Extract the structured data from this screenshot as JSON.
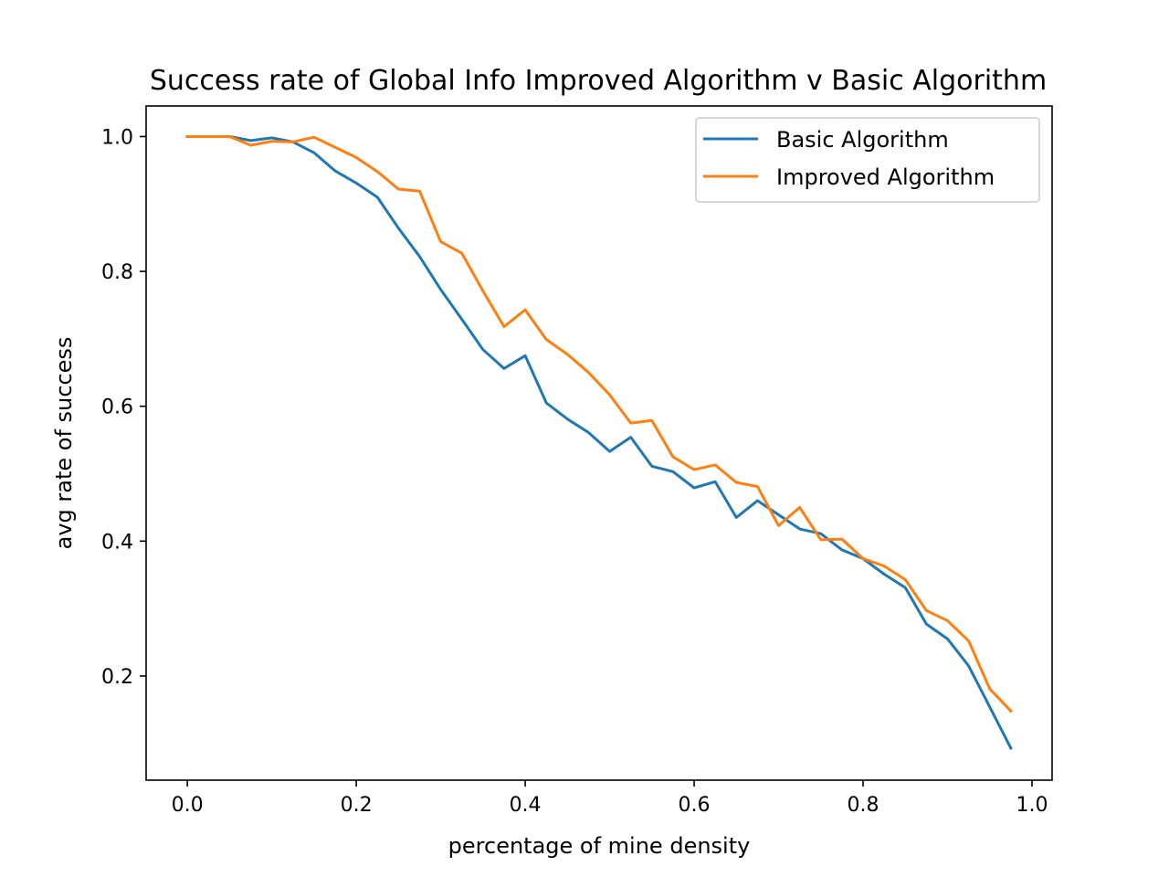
{
  "chart_data": {
    "type": "line",
    "title": "Success rate of Global Info Improved Algorithm v Basic Algorithm",
    "xlabel": "percentage of mine density",
    "ylabel": "avg rate of success",
    "xlim": [
      -0.0488,
      1.0238
    ],
    "ylim": [
      0.0455,
      1.0453
    ],
    "xticks": [
      0.0,
      0.2,
      0.4,
      0.6,
      0.8,
      1.0
    ],
    "xtick_labels": [
      "0.0",
      "0.2",
      "0.4",
      "0.6",
      "0.8",
      "1.0"
    ],
    "yticks": [
      0.2,
      0.4,
      0.6,
      0.8,
      1.0
    ],
    "ytick_labels": [
      "0.2",
      "0.4",
      "0.6",
      "0.8",
      "1.0"
    ],
    "grid": false,
    "legend_position": "top-right",
    "x": [
      0.0,
      0.025,
      0.05,
      0.075,
      0.1,
      0.125,
      0.15,
      0.175,
      0.2,
      0.225,
      0.25,
      0.275,
      0.3,
      0.325,
      0.35,
      0.375,
      0.4,
      0.425,
      0.45,
      0.475,
      0.5,
      0.525,
      0.55,
      0.575,
      0.6,
      0.625,
      0.65,
      0.675,
      0.7,
      0.725,
      0.75,
      0.775,
      0.8,
      0.825,
      0.85,
      0.875,
      0.9,
      0.925,
      0.95,
      0.975
    ],
    "series": [
      {
        "name": "Basic Algorithm",
        "color": "#1f77b4",
        "values": [
          1.0,
          1.0,
          1.0,
          0.994,
          0.998,
          0.992,
          0.976,
          0.949,
          0.931,
          0.91,
          0.864,
          0.822,
          0.773,
          0.729,
          0.684,
          0.656,
          0.675,
          0.605,
          0.581,
          0.561,
          0.533,
          0.554,
          0.511,
          0.503,
          0.479,
          0.488,
          0.435,
          0.46,
          0.439,
          0.418,
          0.411,
          0.387,
          0.374,
          0.351,
          0.331,
          0.277,
          0.255,
          0.215,
          0.154,
          0.093
        ]
      },
      {
        "name": "Improved Algorithm",
        "color": "#ff7f0e",
        "values": [
          1.0,
          1.0,
          1.0,
          0.987,
          0.993,
          0.992,
          0.999,
          0.984,
          0.969,
          0.948,
          0.922,
          0.919,
          0.844,
          0.827,
          0.771,
          0.718,
          0.743,
          0.699,
          0.677,
          0.65,
          0.617,
          0.575,
          0.579,
          0.525,
          0.506,
          0.513,
          0.487,
          0.481,
          0.423,
          0.45,
          0.402,
          0.403,
          0.374,
          0.363,
          0.343,
          0.297,
          0.282,
          0.252,
          0.181,
          0.148
        ]
      }
    ]
  }
}
